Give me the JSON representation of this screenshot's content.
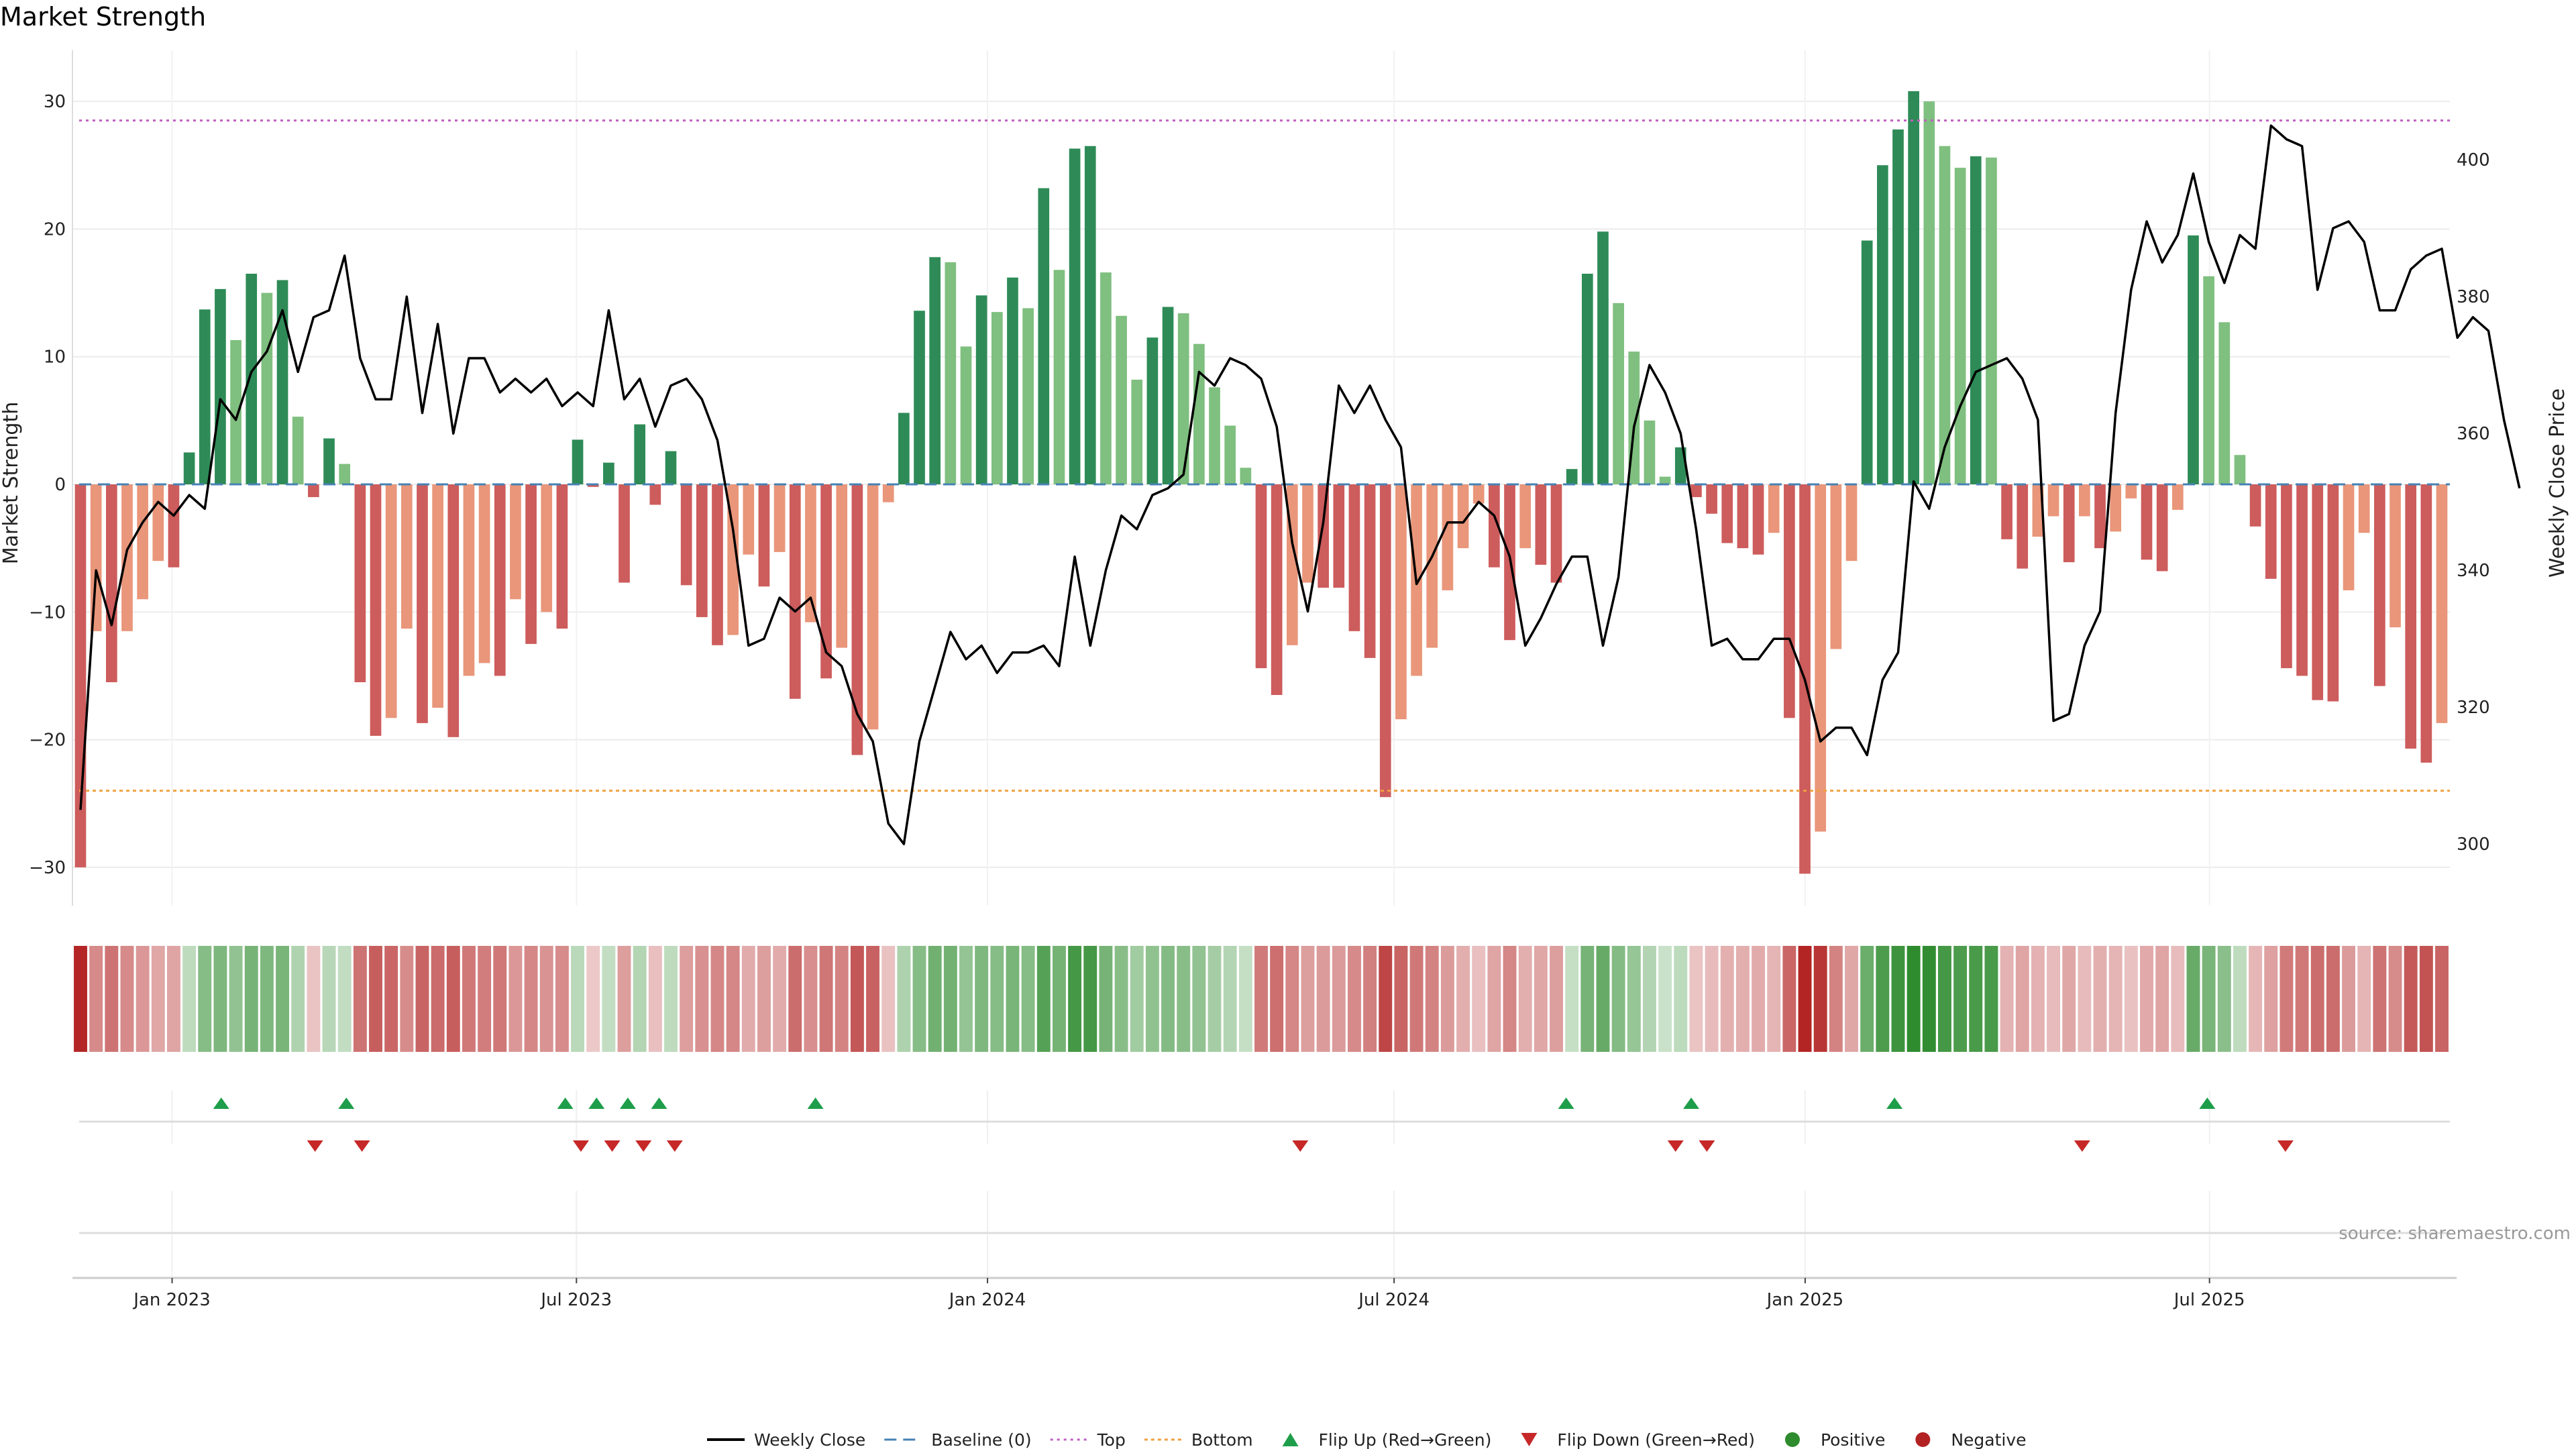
{
  "title": "Market Strength",
  "source_text": "source: sharemaestro.com",
  "colors": {
    "pos_strong": "#2e8b57",
    "pos_light": "#7fbf7f",
    "neg_strong": "#cd5c5c",
    "neg_light": "#e9967a",
    "close": "#000000",
    "baseline": "#4682b4",
    "top": "#c060c0",
    "bottom": "#f0a040",
    "flip_up": "#1e9e4a",
    "flip_down": "#c62828",
    "positive": "#2e8b2e",
    "negative": "#b22222"
  },
  "chart_data": {
    "type": "bar",
    "title": "Market Strength",
    "ylabel": "Market Strength",
    "y2label": "Weekly Close Price",
    "ylim": [
      -33,
      34
    ],
    "y_ticks": [
      30,
      20,
      10,
      0,
      -10,
      -20,
      -30
    ],
    "y_tick_labels": [
      "30",
      "20",
      "10",
      "0",
      "−10",
      "−20",
      "−30"
    ],
    "y2lim": [
      291,
      416
    ],
    "y2_ticks": [
      400,
      380,
      360,
      340,
      320,
      300
    ],
    "x_start": "2022-11-21",
    "x_end": "2025-10-13",
    "x_ticks": [
      "2023-01-01",
      "2023-07-01",
      "2024-01-01",
      "2024-07-01",
      "2025-01-01",
      "2025-07-01"
    ],
    "x_tick_labels": [
      "Jan 2023",
      "Jul 2023",
      "Jan 2024",
      "Jul 2024",
      "Jan 2025",
      "Jul 2025"
    ],
    "top_line": 28.5,
    "bottom_line": -24,
    "baseline": 0,
    "strength": [
      -30,
      -11.5,
      -15.5,
      -11.5,
      -9,
      -6,
      -6.5,
      2.5,
      13.7,
      15.3,
      11.3,
      16.5,
      15,
      16,
      5.3,
      -1,
      3.6,
      1.6,
      -15.5,
      -19.7,
      -18.3,
      -11.3,
      -18.7,
      -17.5,
      -19.8,
      -15,
      -14,
      -15,
      -9,
      -12.5,
      -10,
      -11.3,
      3.5,
      -0.2,
      1.7,
      -7.7,
      4.7,
      -1.6,
      2.6,
      -7.9,
      -10.4,
      -12.6,
      -11.8,
      -5.5,
      -8,
      -5.3,
      -16.8,
      -10.8,
      -15.2,
      -12.8,
      -21.2,
      -19.2,
      -1.4,
      5.6,
      13.6,
      17.8,
      17.4,
      10.8,
      14.8,
      13.5,
      16.2,
      13.8,
      23.2,
      16.8,
      26.3,
      26.5,
      16.6,
      13.2,
      8.2,
      11.5,
      13.9,
      13.4,
      11,
      7.6,
      4.6,
      1.3,
      -14.4,
      -16.5,
      -12.6,
      -7.7,
      -8.1,
      -8.1,
      -11.5,
      -13.6,
      -24.5,
      -18.4,
      -15,
      -12.8,
      -8.3,
      -5,
      -1.5,
      -6.5,
      -12.2,
      -5,
      -6.3,
      -7.7,
      1.2,
      16.5,
      19.8,
      14.2,
      10.4,
      5,
      0.6,
      2.9,
      -1,
      -2.3,
      -4.6,
      -5,
      -5.5,
      -3.8,
      -18.3,
      -30.5,
      -27.2,
      -12.9,
      -6,
      19.1,
      25,
      27.8,
      30.8,
      30,
      26.5,
      24.8,
      25.7,
      25.6,
      -4.3,
      -6.6,
      -4.1,
      -2.5,
      -6.1,
      -2.5,
      -5,
      -3.7,
      -1.1,
      -5.9,
      -6.8,
      -2,
      19.5,
      16.3,
      12.7,
      2.3,
      -3.3,
      -7.4,
      -14.4,
      -15,
      -16.9,
      -17,
      -8.3,
      -3.8,
      -15.8,
      -11.2,
      -20.7,
      -21.8,
      -18.7
    ],
    "weekly_close": [
      305,
      340,
      332,
      343,
      347,
      350,
      348,
      351,
      349,
      365,
      362,
      369,
      372,
      378,
      369,
      377,
      378,
      386,
      371,
      365,
      365,
      380,
      363,
      376,
      360,
      371,
      371,
      366,
      368,
      366,
      368,
      364,
      366,
      364,
      378,
      365,
      368,
      361,
      367,
      368,
      365,
      359,
      346,
      329,
      330,
      336,
      334,
      336,
      328,
      326,
      319,
      315,
      303,
      300,
      315,
      323,
      331,
      327,
      329,
      325,
      328,
      328,
      329,
      326,
      342,
      329,
      340,
      348,
      346,
      351,
      352,
      354,
      369,
      367,
      371,
      370,
      368,
      361,
      344,
      334,
      347,
      367,
      363,
      367,
      362,
      358,
      338,
      342,
      347,
      347,
      350,
      348,
      342,
      329,
      333,
      338,
      342,
      342,
      329,
      339,
      361,
      370,
      366,
      360,
      346,
      329,
      330,
      327,
      327,
      330,
      330,
      324,
      315,
      317,
      317,
      313,
      324,
      328,
      353,
      349,
      358,
      364,
      369,
      370,
      371,
      368,
      362,
      318,
      319,
      329,
      334,
      363,
      381,
      391,
      385,
      389,
      398,
      388,
      382,
      389,
      387,
      405,
      403,
      402,
      381,
      390,
      391,
      388,
      378,
      378,
      384,
      386,
      387,
      374,
      377,
      375,
      362,
      352
    ],
    "flip_up_dates": [
      "2023-01-23",
      "2023-03-20",
      "2023-06-26",
      "2023-07-10",
      "2023-07-24",
      "2023-08-07",
      "2023-10-16",
      "2024-09-16",
      "2024-11-11",
      "2025-02-10",
      "2025-06-30"
    ],
    "flip_down_dates": [
      "2023-03-06",
      "2023-03-27",
      "2023-07-03",
      "2023-07-17",
      "2023-07-31",
      "2023-08-14",
      "2024-05-20",
      "2024-11-04",
      "2024-11-18",
      "2025-05-05",
      "2025-08-04"
    ],
    "legend": [
      "Weekly Close",
      "Baseline (0)",
      "Top",
      "Bottom",
      "Flip Up (Red→Green)",
      "Flip Down (Green→Red)",
      "Positive",
      "Negative"
    ]
  }
}
